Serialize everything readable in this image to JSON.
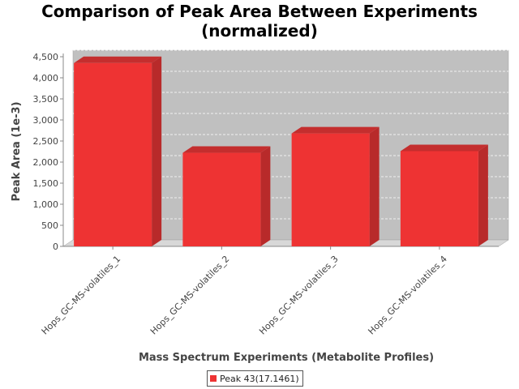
{
  "chart_data": {
    "type": "bar",
    "title_line1": "Comparison of Peak Area Between Experiments",
    "title_line2": "(normalized)",
    "xlabel": "Mass Spectrum Experiments (Metabolite Profiles)",
    "ylabel": "Peak Area (1e-3)",
    "categories": [
      "Hops_GC-MS-volatiles_1",
      "Hops_GC-MS-volatiles_2",
      "Hops_GC-MS-volatiles_3",
      "Hops_GC-MS-volatiles_4"
    ],
    "series": [
      {
        "name": "Peak 43(17.1461)",
        "values": [
          4350,
          2220,
          2680,
          2260
        ],
        "color": "#ee3333"
      }
    ],
    "ylim": [
      0,
      4500
    ],
    "yticks": [
      0,
      500,
      1000,
      1500,
      2000,
      2500,
      3000,
      3500,
      4000,
      4500
    ],
    "ytick_labels": [
      "0",
      "500",
      "1,000",
      "1,500",
      "2,000",
      "2,500",
      "3,000",
      "3,500",
      "4,000",
      "4,500"
    ],
    "grid": true,
    "legend_position": "bottom",
    "plot_background": "#c0c0c0"
  }
}
